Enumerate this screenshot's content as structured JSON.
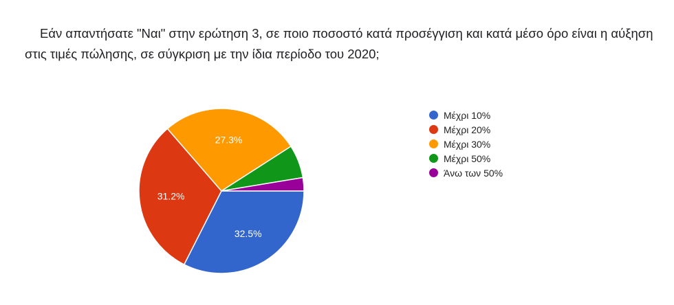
{
  "question": {
    "text": "Εάν απαντήσατε \"Ναι\" στην ερώτηση 3, σε ποιο ποσοστό κατά προσέγγιση και κατά μέσο όρο είναι η αύξηση στις τιμές πώλησης, σε σύγκριση με την ίδια περίοδο του 2020;"
  },
  "chart_data": {
    "type": "pie",
    "title": "",
    "legend_position": "right",
    "categories": [
      "Μέχρι 10%",
      "Μέχρι 20%",
      "Μέχρι 30%",
      "Μέχρι 50%",
      "Άνω των 50%"
    ],
    "values": [
      32.5,
      31.2,
      27.3,
      6.5,
      2.6
    ],
    "data_labels": [
      "32.5%",
      "31.2%",
      "27.3%",
      "",
      ""
    ],
    "colors": [
      "#3366cc",
      "#dc3912",
      "#ff9900",
      "#109618",
      "#990099"
    ]
  }
}
